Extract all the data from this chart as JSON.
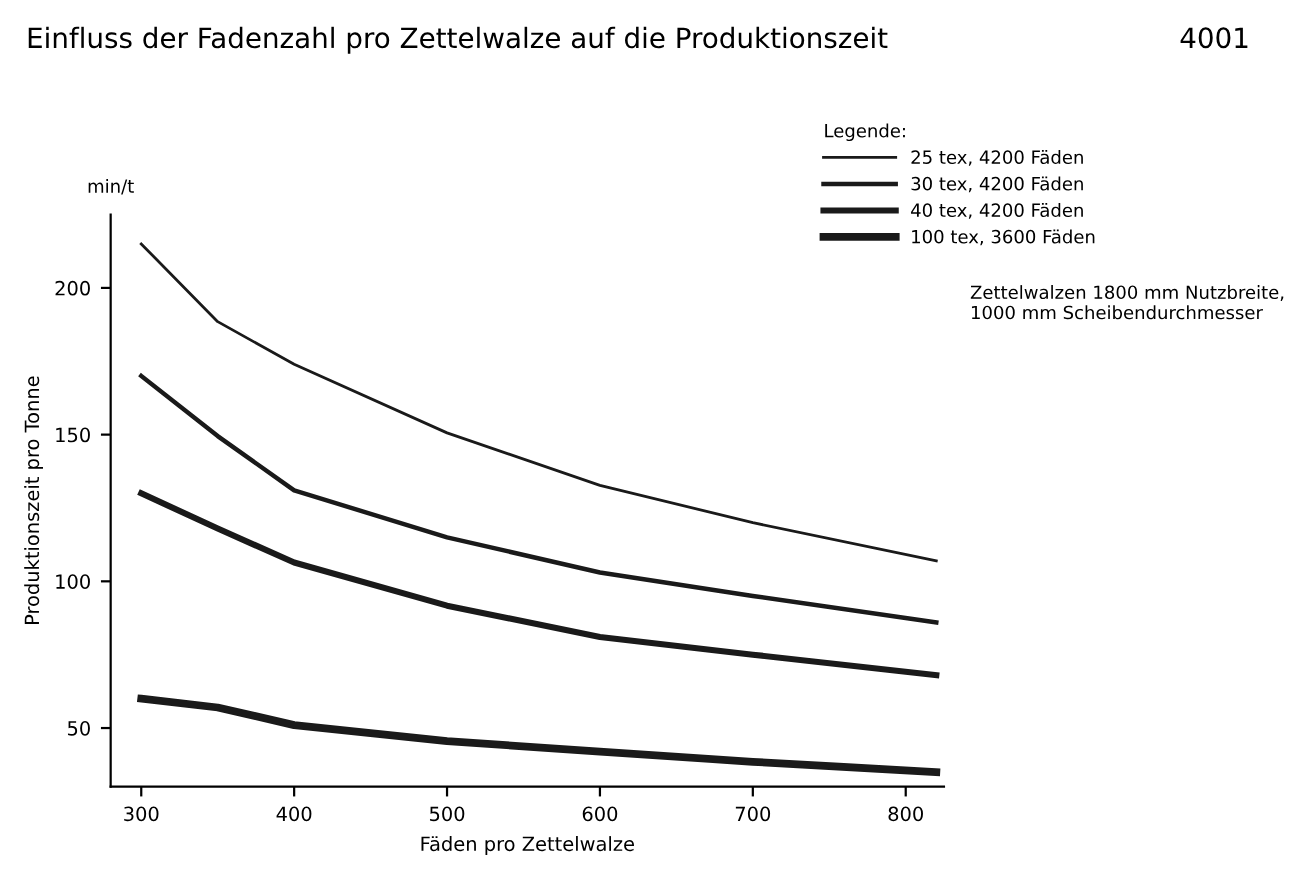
{
  "chart_data": {
    "type": "line",
    "title": "Einfluss der Fadenzahl pro Zettelwalze auf die Produktionszeit",
    "xlabel": "Fäden pro Zettelwalze",
    "ylabel": "Produktionszeit pro Tonne",
    "legend_title": "Legende:",
    "annotations": [
      "4001",
      "min/t",
      "Zettelwalzen 1800 mm Nutzbreite,\n1000 mm Scheibendurchmesser"
    ],
    "x": [
      300,
      350,
      400,
      500,
      600,
      700,
      820
    ],
    "series": [
      {
        "name": "25 tex, 4200 Fäden",
        "color": "#1a1a1a",
        "values": [
          215,
          188.5,
          174,
          150.6,
          132.7,
          120,
          107
        ]
      },
      {
        "name": "30 tex, 4200 Fäden",
        "color": "#1a1a1a",
        "values": [
          170,
          149.5,
          131,
          115,
          103,
          95,
          86
        ]
      },
      {
        "name": "40 tex, 4200 Fäden",
        "color": "#1a1a1a",
        "values": [
          130,
          118,
          106.4,
          91.7,
          81,
          75,
          68
        ]
      },
      {
        "name": "100 tex, 3600 Fäden",
        "color": "#1a1a1a",
        "values": [
          60,
          57,
          51,
          45.5,
          42,
          38.5,
          35
        ]
      }
    ],
    "xlim": [
      280,
      825
    ],
    "ylim": [
      30,
      225
    ],
    "xticks": [
      300,
      400,
      500,
      600,
      700,
      800
    ],
    "yticks": [
      50,
      100,
      150,
      200
    ],
    "grid": false,
    "legend": "top right",
    "marker": "none",
    "line_style": "solid"
  }
}
